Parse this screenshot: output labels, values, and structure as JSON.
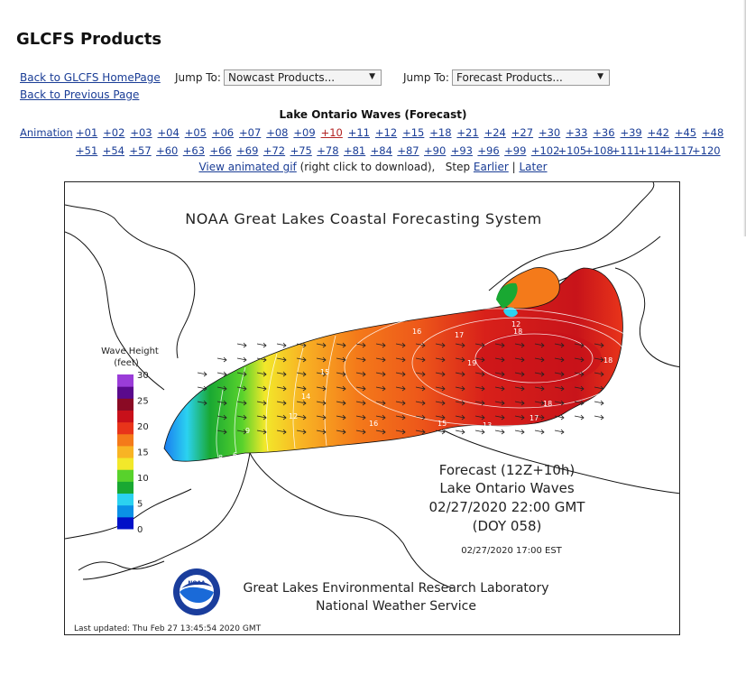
{
  "page": {
    "title": "GLCFS Products"
  },
  "nav": {
    "back_home": "Back to GLCFS HomePage",
    "back_previous": "Back to Previous Page",
    "jump_to_label": "Jump To:",
    "nowcast_select": "Nowcast Products...",
    "forecast_select": "Forecast Products..."
  },
  "product": {
    "title": "Lake Ontario Waves (Forecast)",
    "animation_label": "Animation",
    "current_frame": "+10",
    "frames_row1": [
      "+01",
      "+02",
      "+03",
      "+04",
      "+05",
      "+06",
      "+07",
      "+08",
      "+09",
      "+10",
      "+11",
      "+12",
      "+15",
      "+18",
      "+21",
      "+24",
      "+27",
      "+30",
      "+33",
      "+36",
      "+39",
      "+42",
      "+45",
      "+48"
    ],
    "frames_row2": [
      "+51",
      "+54",
      "+57",
      "+60",
      "+63",
      "+66",
      "+69",
      "+72",
      "+75",
      "+78",
      "+81",
      "+84",
      "+87",
      "+90",
      "+93",
      "+96",
      "+99",
      "+102",
      "+105",
      "+108",
      "+111",
      "+114",
      "+117",
      "+120"
    ],
    "view_gif": "View animated gif",
    "gif_note": "(right click to download),",
    "step_label": "Step",
    "earlier": "Earlier",
    "separator": "|",
    "later": "Later"
  },
  "map": {
    "header": "NOAA Great Lakes Coastal Forecasting System",
    "legend_title_1": "Wave Height",
    "legend_title_2": "(feet)",
    "legend_ticks": [
      "30",
      "25",
      "20",
      "15",
      "10",
      "5",
      "0"
    ],
    "legend_colors": [
      "#0010c8",
      "#0a90e6",
      "#2bd2f0",
      "#19a832",
      "#58d22c",
      "#f2e82a",
      "#f8b424",
      "#f47a1a",
      "#e8341a",
      "#c8101a",
      "#8a0a24",
      "#5a0a8c",
      "#9a3cd8"
    ],
    "forecast_line1": "Forecast (12Z+10h)",
    "forecast_line2": "Lake Ontario Waves",
    "forecast_line3": "02/27/2020 22:00 GMT",
    "forecast_line4": "(DOY 058)",
    "local_time": "02/27/2020 17:00 EST",
    "lab_line1": "Great Lakes Environmental Research Laboratory",
    "lab_line2": "National Weather Service",
    "noaa_logo_text": "NOAA",
    "updated": "Last updated: Thu Feb 27 13:45:54 2020 GMT",
    "contour_labels": [
      "17",
      "16",
      "15",
      "14",
      "12",
      "9",
      "8",
      "6",
      "18",
      "19",
      "18",
      "18",
      "17",
      "15",
      "16",
      "13",
      "12"
    ]
  }
}
